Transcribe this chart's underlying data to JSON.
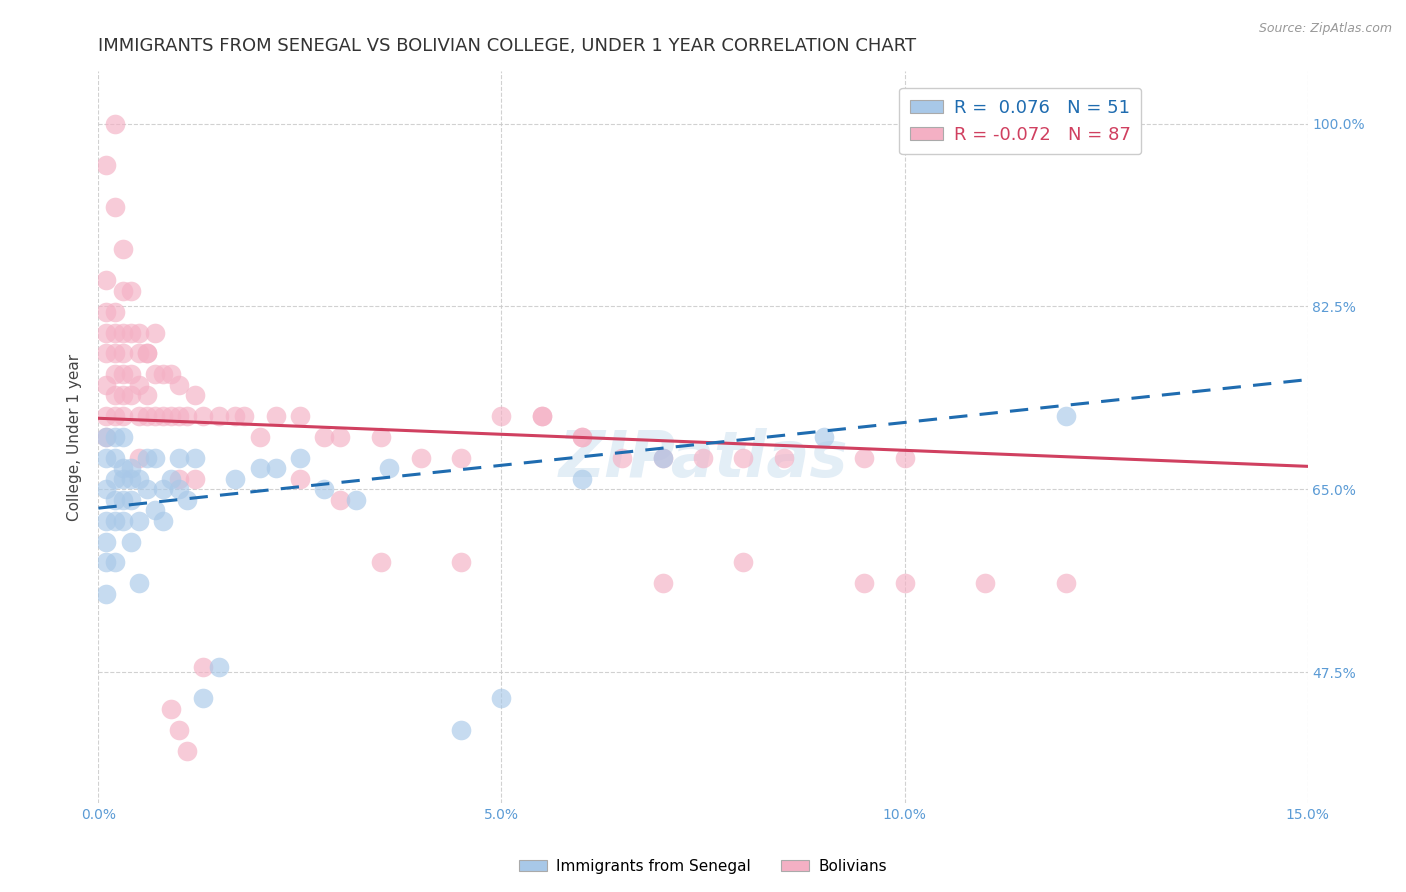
{
  "title": "IMMIGRANTS FROM SENEGAL VS BOLIVIAN COLLEGE, UNDER 1 YEAR CORRELATION CHART",
  "source": "Source: ZipAtlas.com",
  "ylabel": "College, Under 1 year",
  "x_min": 0.0,
  "x_max": 0.15,
  "y_min": 0.35,
  "y_max": 1.05,
  "x_ticks": [
    0.0,
    0.05,
    0.1,
    0.15
  ],
  "x_tick_labels": [
    "0.0%",
    "5.0%",
    "10.0%",
    "15.0%"
  ],
  "y_ticks": [
    0.475,
    0.65,
    0.825,
    1.0
  ],
  "y_tick_labels": [
    "47.5%",
    "65.0%",
    "82.5%",
    "100.0%"
  ],
  "senegal_color": "#a8c8e8",
  "bolivia_color": "#f4b0c4",
  "senegal_line_color": "#1f6cb0",
  "bolivia_line_color": "#d04060",
  "watermark": "ZIPatlas",
  "background_color": "#ffffff",
  "grid_color": "#cccccc",
  "title_fontsize": 13,
  "senegal_line_y0": 0.632,
  "senegal_line_y1": 0.755,
  "bolivia_line_y0": 0.718,
  "bolivia_line_y1": 0.672,
  "senegal_x": [
    0.001,
    0.001,
    0.001,
    0.001,
    0.001,
    0.001,
    0.001,
    0.002,
    0.002,
    0.002,
    0.002,
    0.002,
    0.002,
    0.003,
    0.003,
    0.003,
    0.003,
    0.003,
    0.004,
    0.004,
    0.004,
    0.004,
    0.005,
    0.005,
    0.005,
    0.006,
    0.006,
    0.007,
    0.007,
    0.008,
    0.008,
    0.009,
    0.01,
    0.01,
    0.011,
    0.012,
    0.013,
    0.015,
    0.017,
    0.02,
    0.022,
    0.025,
    0.028,
    0.032,
    0.036,
    0.045,
    0.05,
    0.06,
    0.07,
    0.09,
    0.12
  ],
  "senegal_y": [
    0.62,
    0.65,
    0.68,
    0.55,
    0.6,
    0.58,
    0.7,
    0.64,
    0.66,
    0.68,
    0.62,
    0.7,
    0.58,
    0.64,
    0.67,
    0.62,
    0.66,
    0.7,
    0.64,
    0.67,
    0.6,
    0.66,
    0.62,
    0.66,
    0.56,
    0.65,
    0.68,
    0.63,
    0.68,
    0.65,
    0.62,
    0.66,
    0.65,
    0.68,
    0.64,
    0.68,
    0.45,
    0.48,
    0.66,
    0.67,
    0.67,
    0.68,
    0.65,
    0.64,
    0.67,
    0.42,
    0.45,
    0.66,
    0.68,
    0.7,
    0.72
  ],
  "bolivia_x": [
    0.001,
    0.001,
    0.001,
    0.001,
    0.001,
    0.001,
    0.001,
    0.002,
    0.002,
    0.002,
    0.002,
    0.002,
    0.002,
    0.003,
    0.003,
    0.003,
    0.003,
    0.003,
    0.004,
    0.004,
    0.004,
    0.004,
    0.005,
    0.005,
    0.005,
    0.005,
    0.006,
    0.006,
    0.006,
    0.007,
    0.007,
    0.007,
    0.008,
    0.008,
    0.009,
    0.009,
    0.01,
    0.01,
    0.011,
    0.012,
    0.013,
    0.015,
    0.017,
    0.018,
    0.02,
    0.022,
    0.025,
    0.028,
    0.03,
    0.035,
    0.04,
    0.045,
    0.05,
    0.055,
    0.06,
    0.065,
    0.07,
    0.075,
    0.08,
    0.085,
    0.095,
    0.1,
    0.01,
    0.012,
    0.025,
    0.03,
    0.035,
    0.045,
    0.055,
    0.06,
    0.07,
    0.08,
    0.095,
    0.1,
    0.11,
    0.12,
    0.001,
    0.002,
    0.002,
    0.003,
    0.003,
    0.005,
    0.006,
    0.009,
    0.01,
    0.011,
    0.013
  ],
  "bolivia_y": [
    0.72,
    0.75,
    0.78,
    0.8,
    0.82,
    0.85,
    0.7,
    0.74,
    0.78,
    0.8,
    0.82,
    0.72,
    0.76,
    0.74,
    0.78,
    0.8,
    0.72,
    0.76,
    0.74,
    0.76,
    0.8,
    0.84,
    0.72,
    0.75,
    0.78,
    0.68,
    0.72,
    0.74,
    0.78,
    0.72,
    0.76,
    0.8,
    0.72,
    0.76,
    0.72,
    0.76,
    0.72,
    0.75,
    0.72,
    0.74,
    0.72,
    0.72,
    0.72,
    0.72,
    0.7,
    0.72,
    0.72,
    0.7,
    0.7,
    0.7,
    0.68,
    0.68,
    0.72,
    0.72,
    0.7,
    0.68,
    0.68,
    0.68,
    0.68,
    0.68,
    0.68,
    0.68,
    0.66,
    0.66,
    0.66,
    0.64,
    0.58,
    0.58,
    0.72,
    0.7,
    0.56,
    0.58,
    0.56,
    0.56,
    0.56,
    0.56,
    0.96,
    1.0,
    0.92,
    0.88,
    0.84,
    0.8,
    0.78,
    0.44,
    0.42,
    0.4,
    0.48
  ]
}
